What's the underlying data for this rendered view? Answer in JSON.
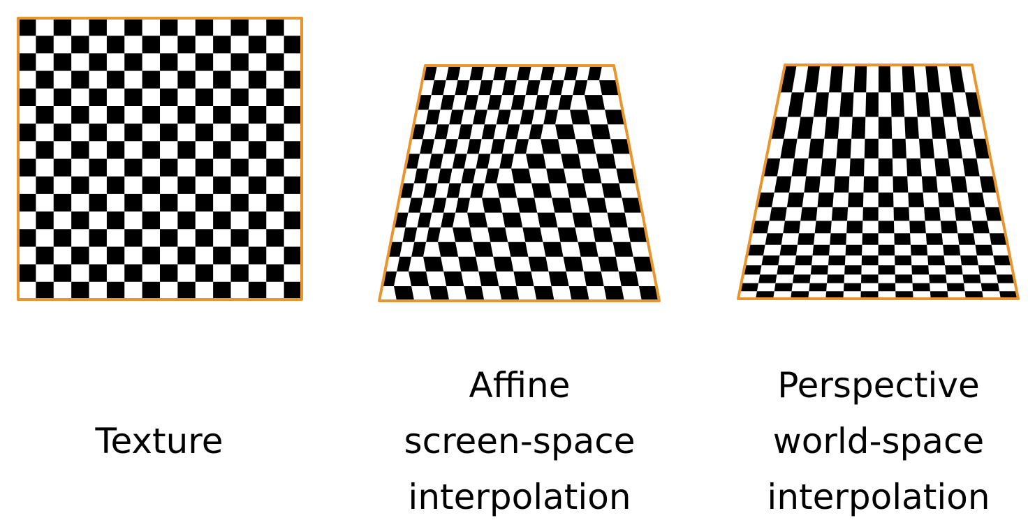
{
  "colors": {
    "border": "#e8952e",
    "dark_square": "#000000",
    "light_square": "#ffffff",
    "text": "#000000"
  },
  "checker": {
    "rows": 16,
    "cols": 16
  },
  "panels": [
    {
      "id": "texture",
      "mapping": "none",
      "caption_lines": [
        "Texture"
      ]
    },
    {
      "id": "affine",
      "mapping": "affine",
      "caption_lines": [
        "Affine",
        "screen-space",
        "interpolation"
      ]
    },
    {
      "id": "perspective",
      "mapping": "perspective",
      "caption_lines": [
        "Perspective",
        "world-space",
        "interpolation"
      ]
    }
  ]
}
